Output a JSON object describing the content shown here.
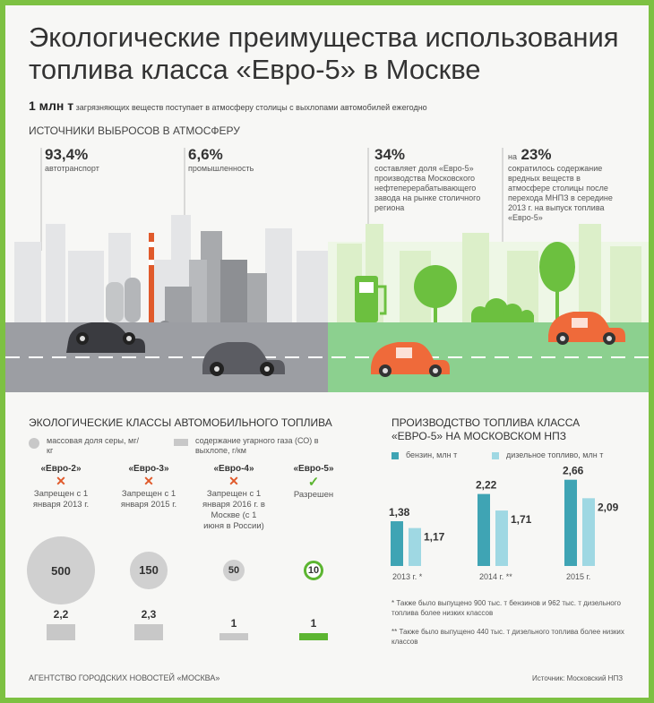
{
  "title": "Экологические преимущества использования топлива класса «Евро-5» в Москве",
  "million_line": {
    "value": "1 млн т",
    "text": "загрязняющих веществ поступает в атмосферу столицы с выхлопами автомобилей ежегодно"
  },
  "sources_header": "ИСТОЧНИКИ ВЫБРОСОВ В АТМОСФЕРУ",
  "stats": [
    {
      "value": "93,4%",
      "label": "автотранспорт"
    },
    {
      "value": "6,6%",
      "label": "промышленность"
    },
    {
      "value": "34%",
      "label": "составляет доля «Евро-5» производства Московского нефтеперерабатывающего завода на рынке столичного региона"
    },
    {
      "prefix": "на",
      "value": "23%",
      "label": "сократилось содержание вредных веществ в атмосфере столицы после перехода МНПЗ в середине 2013 г. на выпуск топлива «Евро-5»"
    }
  ],
  "fuel_classes": {
    "header": "ЭКОЛОГИЧЕСКИЕ КЛАССЫ АВТОМОБИЛЬНОГО ТОПЛИВА",
    "legend_sulfur": "массовая доля серы, мг/кг",
    "legend_co": "содержание угарного газа (СО) в выхлопе, г/км",
    "items": [
      {
        "name": "«Евро-2»",
        "mark": "✕",
        "status": "Запрещен с 1 января 2013 г.",
        "sulfur": 500,
        "co": "2,2"
      },
      {
        "name": "«Евро-3»",
        "mark": "✕",
        "status": "Запрещен с 1 января 2015 г.",
        "sulfur": 150,
        "co": "2,3"
      },
      {
        "name": "«Евро-4»",
        "mark": "✕",
        "status": "Запрещен с 1 января 2016 г. в Москве (с 1 июня в России)",
        "sulfur": 50,
        "co": "1"
      },
      {
        "name": "«Евро-5»",
        "mark": "✓",
        "status": "Разрешен",
        "sulfur": 10,
        "co": "1"
      }
    ]
  },
  "chart_data": {
    "type": "bar",
    "title": "ПРОИЗВОДСТВО ТОПЛИВА КЛАССА «ЕВРО-5» НА МОСКОВСКОМ НПЗ",
    "categories": [
      "2013 г. *",
      "2014 г. **",
      "2015 г."
    ],
    "series": [
      {
        "name": "бензин, млн т",
        "values": [
          1.38,
          2.22,
          2.66
        ],
        "labels": [
          "1,38",
          "2,22",
          "2,66"
        ],
        "color": "#3fa4b4"
      },
      {
        "name": "дизельное топливо, млн т",
        "values": [
          1.17,
          1.71,
          2.09
        ],
        "labels": [
          "1,17",
          "1,71",
          "2,09"
        ],
        "color": "#9fd8e3"
      }
    ],
    "ylim": [
      0,
      3
    ],
    "grid": false
  },
  "notes": [
    "* Также было выпущено 900 тыс. т бензинов и 962 тыс. т дизельного топлива более низких классов",
    "** Также было выпущено 440 тыс. т дизельного топлива более низких классов"
  ],
  "footer_left": "АГЕНТСТВО ГОРОДСКИХ НОВОСТЕЙ «МОСКВА»",
  "footer_right": "Источник: Московский НПЗ",
  "colors": {
    "accent_green": "#7dc142",
    "bar_dark": "#3fa4b4",
    "bar_light": "#9fd8e3",
    "cross": "#e05a2b",
    "car_orange": "#ef6a3a",
    "road_grey": "#9c9ea3",
    "road_green": "#8cd08f"
  }
}
